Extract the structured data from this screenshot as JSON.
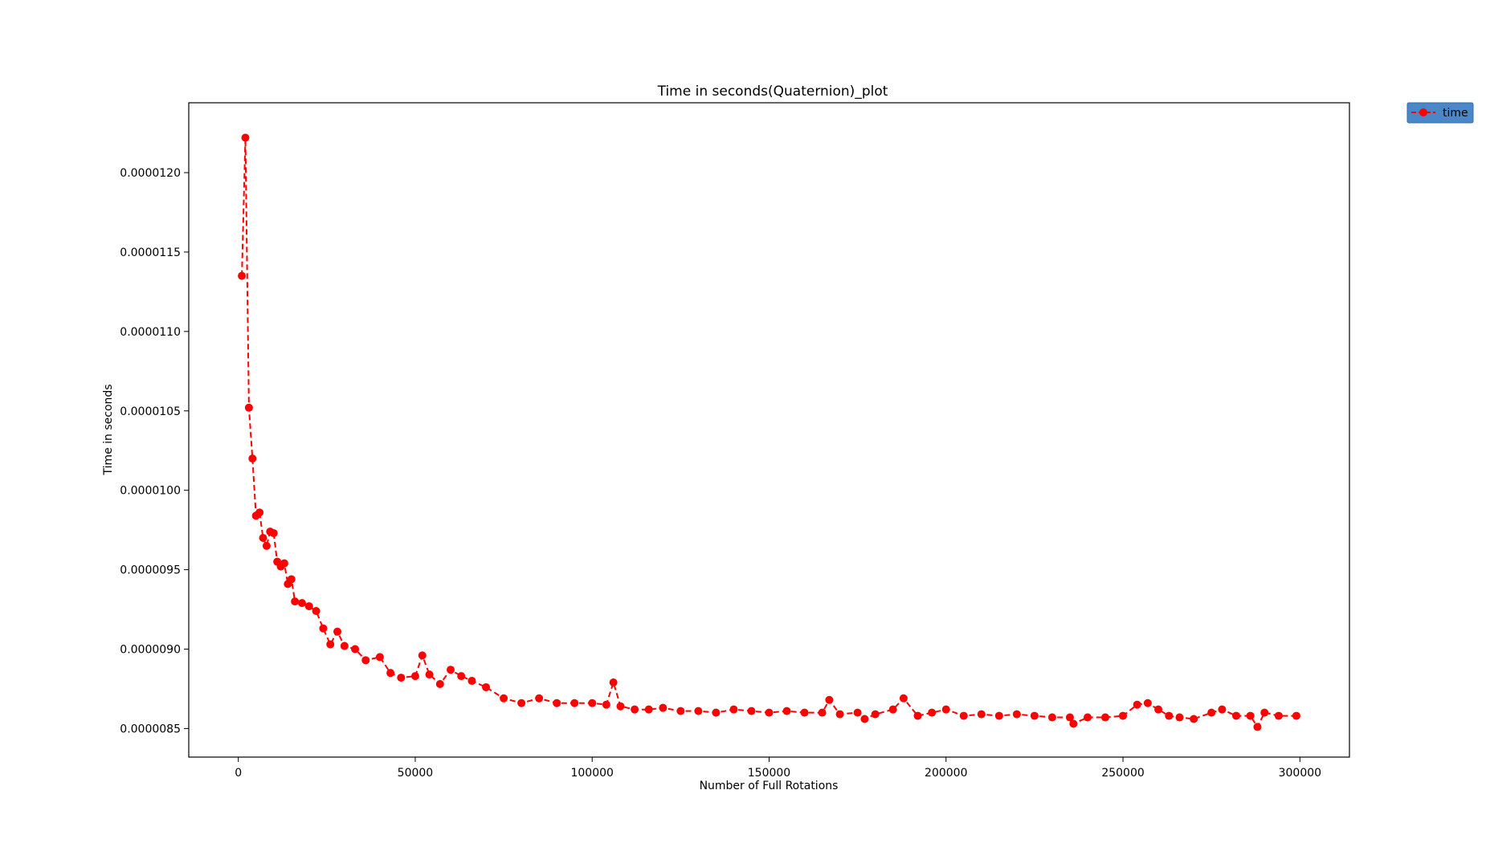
{
  "chart_data": {
    "type": "line",
    "title": "Time in seconds(Quaternion)_plot",
    "xlabel": "Number of Full Rotations",
    "ylabel": "Time in seconds",
    "xlim": [
      -14000,
      314000
    ],
    "ylim": [
      8.32e-06,
      1.244e-05
    ],
    "xticks": [
      0,
      50000,
      100000,
      150000,
      200000,
      250000,
      300000
    ],
    "yticks": [
      8.5e-06,
      9e-06,
      9.5e-06,
      1e-05,
      1.05e-05,
      1.1e-05,
      1.15e-05,
      1.2e-05
    ],
    "xtick_labels": [
      "0",
      "50000",
      "100000",
      "150000",
      "200000",
      "250000",
      "300000"
    ],
    "ytick_labels": [
      "0.0000085",
      "0.0000090",
      "0.0000095",
      "0.0000100",
      "0.0000105",
      "0.0000110",
      "0.0000115",
      "0.0000120"
    ],
    "grid": false,
    "legend": {
      "position": "outside-top-right",
      "entries": [
        "time"
      ]
    },
    "series": [
      {
        "name": "time",
        "color": "#ff0000",
        "line_style": "dashed",
        "marker": "circle",
        "x": [
          1000,
          2000,
          3000,
          4000,
          5000,
          6000,
          7000,
          8000,
          9000,
          10000,
          11000,
          12000,
          13000,
          14000,
          15000,
          16000,
          18000,
          20000,
          22000,
          24000,
          26000,
          28000,
          30000,
          33000,
          36000,
          40000,
          43000,
          46000,
          50000,
          52000,
          54000,
          57000,
          60000,
          63000,
          66000,
          70000,
          75000,
          80000,
          85000,
          90000,
          95000,
          100000,
          104000,
          106000,
          108000,
          112000,
          116000,
          120000,
          125000,
          130000,
          135000,
          140000,
          145000,
          150000,
          155000,
          160000,
          165000,
          167000,
          170000,
          175000,
          177000,
          180000,
          185000,
          188000,
          192000,
          196000,
          200000,
          205000,
          210000,
          215000,
          220000,
          225000,
          230000,
          235000,
          236000,
          240000,
          245000,
          250000,
          254000,
          257000,
          260000,
          263000,
          266000,
          270000,
          275000,
          278000,
          282000,
          286000,
          288000,
          290000,
          294000,
          299000
        ],
        "y": [
          1.135e-05,
          1.222e-05,
          1.052e-05,
          1.02e-05,
          9.84e-06,
          9.86e-06,
          9.7e-06,
          9.65e-06,
          9.74e-06,
          9.73e-06,
          9.55e-06,
          9.52e-06,
          9.54e-06,
          9.41e-06,
          9.44e-06,
          9.3e-06,
          9.29e-06,
          9.27e-06,
          9.24e-06,
          9.13e-06,
          9.03e-06,
          9.11e-06,
          9.02e-06,
          9e-06,
          8.93e-06,
          8.95e-06,
          8.85e-06,
          8.82e-06,
          8.83e-06,
          8.96e-06,
          8.84e-06,
          8.78e-06,
          8.87e-06,
          8.83e-06,
          8.8e-06,
          8.76e-06,
          8.69e-06,
          8.66e-06,
          8.69e-06,
          8.66e-06,
          8.66e-06,
          8.66e-06,
          8.65e-06,
          8.79e-06,
          8.64e-06,
          8.62e-06,
          8.62e-06,
          8.63e-06,
          8.61e-06,
          8.61e-06,
          8.6e-06,
          8.62e-06,
          8.61e-06,
          8.6e-06,
          8.61e-06,
          8.6e-06,
          8.6e-06,
          8.68e-06,
          8.59e-06,
          8.6e-06,
          8.56e-06,
          8.59e-06,
          8.62e-06,
          8.69e-06,
          8.58e-06,
          8.6e-06,
          8.62e-06,
          8.58e-06,
          8.59e-06,
          8.58e-06,
          8.59e-06,
          8.58e-06,
          8.57e-06,
          8.57e-06,
          8.53e-06,
          8.57e-06,
          8.57e-06,
          8.58e-06,
          8.65e-06,
          8.66e-06,
          8.62e-06,
          8.58e-06,
          8.57e-06,
          8.56e-06,
          8.6e-06,
          8.62e-06,
          8.58e-06,
          8.58e-06,
          8.51e-06,
          8.6e-06,
          8.58e-06,
          8.58e-06
        ]
      }
    ]
  }
}
